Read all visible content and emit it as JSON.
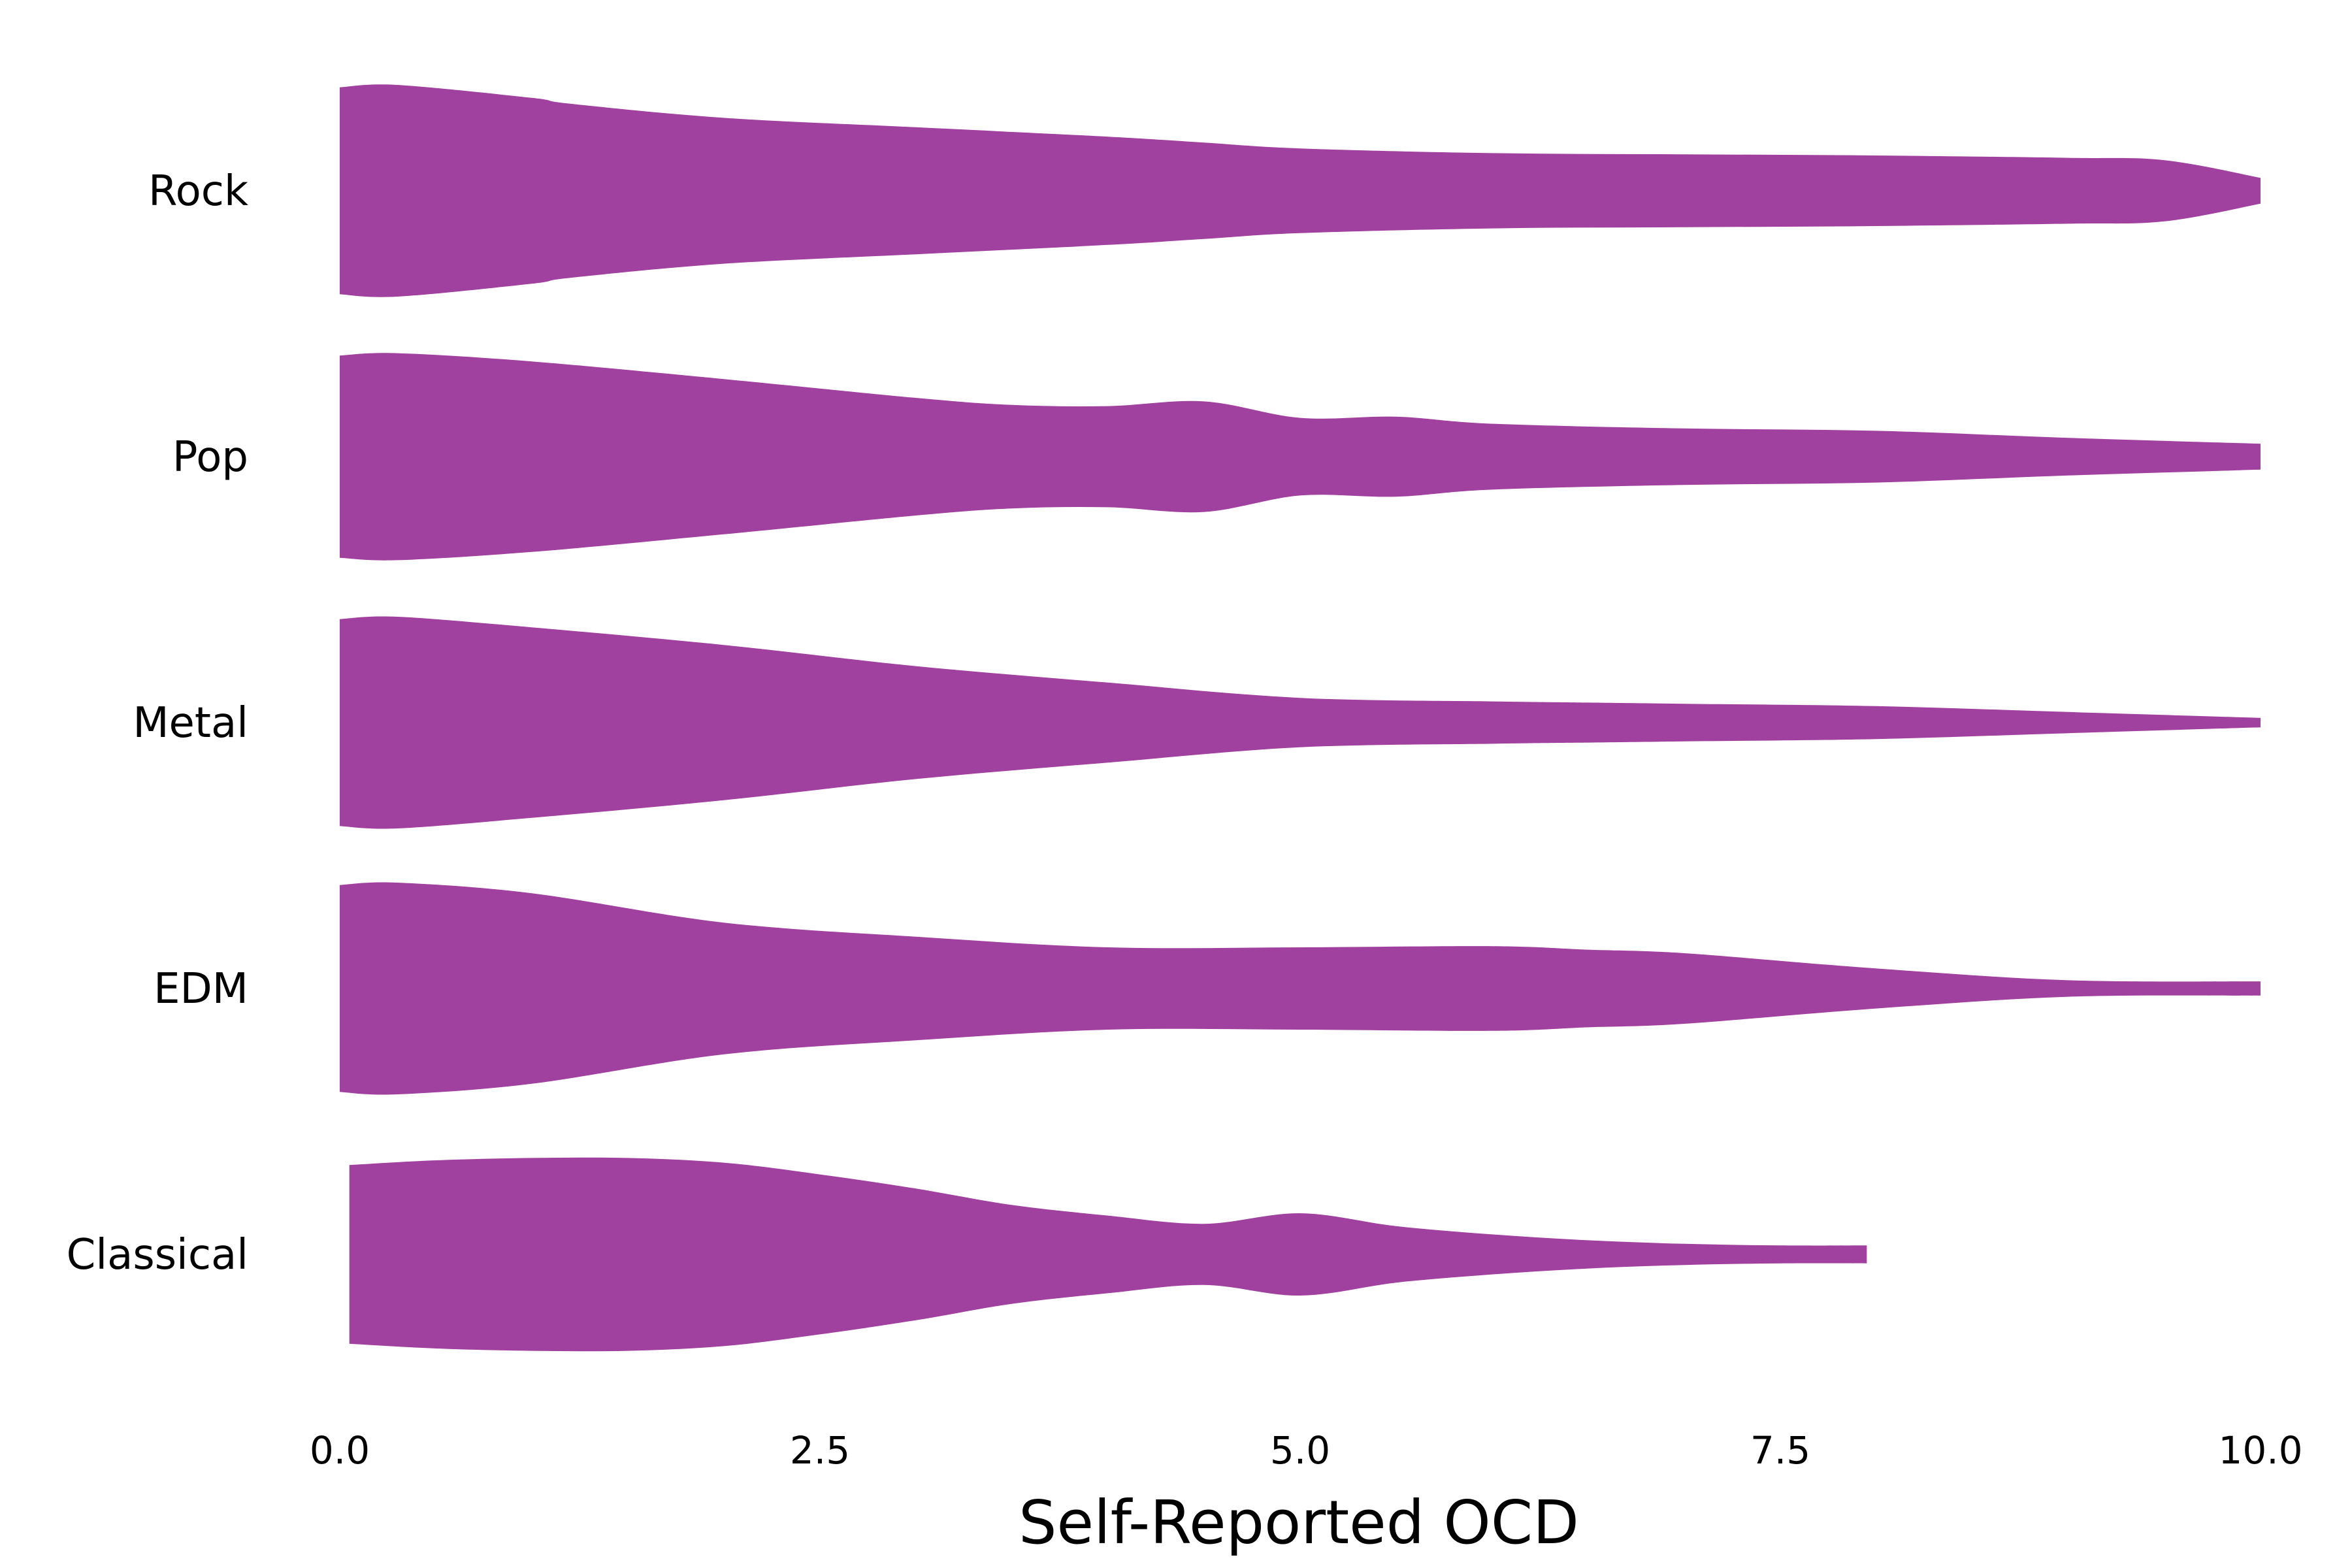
{
  "chart_data": {
    "type": "violin",
    "orientation": "horizontal",
    "xlabel": "Self-Reported OCD",
    "ylabel": "",
    "xlim": [
      0,
      10
    ],
    "xticks": [
      0.0,
      2.5,
      5.0,
      7.5,
      10.0
    ],
    "xtick_labels": [
      "0.0",
      "2.5",
      "5.0",
      "7.5",
      "10.0"
    ],
    "grid": false,
    "color": "#a0409f",
    "categories": [
      "Rock",
      "Pop",
      "Metal",
      "EDM",
      "Classical"
    ],
    "series": [
      {
        "name": "Rock",
        "density_x": [
          0,
          0.3,
          1,
          1.2,
          2,
          3,
          4,
          4.5,
          5,
          6,
          7,
          8,
          9,
          9.5,
          10
        ],
        "half_width": [
          0.44,
          0.45,
          0.395,
          0.37,
          0.31,
          0.27,
          0.23,
          0.205,
          0.18,
          0.16,
          0.155,
          0.15,
          0.14,
          0.13,
          0.055
        ]
      },
      {
        "name": "Pop",
        "density_x": [
          0,
          0.3,
          1,
          2,
          3,
          3.5,
          4,
          4.5,
          5,
          5.5,
          6,
          7,
          8,
          9,
          10
        ],
        "half_width": [
          0.43,
          0.44,
          0.405,
          0.33,
          0.25,
          0.22,
          0.215,
          0.235,
          0.165,
          0.17,
          0.14,
          0.12,
          0.11,
          0.08,
          0.055
        ]
      },
      {
        "name": "Metal",
        "density_x": [
          0,
          0.3,
          1,
          2,
          3,
          4,
          5,
          6,
          6.5,
          7,
          8,
          9,
          10
        ],
        "half_width": [
          0.44,
          0.45,
          0.405,
          0.33,
          0.24,
          0.17,
          0.105,
          0.09,
          0.085,
          0.08,
          0.07,
          0.045,
          0.02
        ]
      },
      {
        "name": "EDM",
        "density_x": [
          0,
          0.3,
          1,
          2,
          3,
          4,
          5,
          6,
          6.5,
          7,
          8,
          9,
          10
        ],
        "half_width": [
          0.44,
          0.45,
          0.405,
          0.28,
          0.22,
          0.175,
          0.175,
          0.18,
          0.165,
          0.15,
          0.085,
          0.035,
          0.03
        ]
      },
      {
        "name": "Classical",
        "density_x": [
          0.05,
          0.5,
          1,
          1.5,
          2,
          2.5,
          3,
          3.5,
          4,
          4.5,
          5,
          5.5,
          6,
          6.5,
          7,
          7.5,
          7.95
        ],
        "half_width": [
          0.38,
          0.4,
          0.41,
          0.41,
          0.39,
          0.34,
          0.28,
          0.21,
          0.165,
          0.13,
          0.175,
          0.12,
          0.085,
          0.06,
          0.045,
          0.038,
          0.038
        ]
      }
    ]
  }
}
